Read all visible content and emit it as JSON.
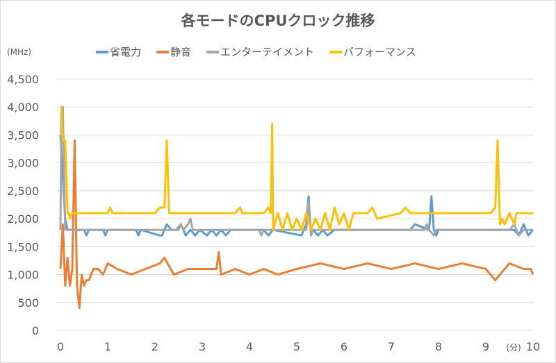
{
  "chart_data": {
    "type": "line",
    "title": "各モードのCPUクロック推移",
    "ylabel": "(MHz)",
    "xlabel": "(分)",
    "ylim": [
      0,
      4500
    ],
    "xlim": [
      0,
      10
    ],
    "yticks": [
      "0",
      "500",
      "1,000",
      "1,500",
      "2,000",
      "2,500",
      "3,000",
      "3,500",
      "4,000",
      "4,500"
    ],
    "xticks": [
      "0",
      "1",
      "2",
      "3",
      "4",
      "5",
      "6",
      "7",
      "8",
      "9",
      "10"
    ],
    "grid": true,
    "legend_position": "top",
    "series": [
      {
        "name": "省電力",
        "color": "#5B9BD5",
        "x": [
          0,
          0.1,
          0.15,
          0.5,
          0.55,
          0.6,
          0.9,
          0.95,
          1,
          1.6,
          1.65,
          1.7,
          2.1,
          2.15,
          2.25,
          2.35,
          2.45,
          2.55,
          2.65,
          2.75,
          2.85,
          2.95,
          3.1,
          3.2,
          3.3,
          3.4,
          3.5,
          3.6,
          4.3,
          4.4,
          4.5,
          5.1,
          5.2,
          5.25,
          5.3,
          5.35,
          5.45,
          5.55,
          5.65,
          5.8,
          6.7,
          7.4,
          7.5,
          7.8,
          7.85,
          7.9,
          7.95,
          8.0,
          8.6,
          9.2,
          9.6,
          9.7,
          9.8,
          9.9,
          10
        ],
        "y": [
          3500,
          2000,
          1800,
          1800,
          1700,
          1800,
          1800,
          1700,
          1800,
          1800,
          1700,
          1800,
          1700,
          1700,
          1900,
          1800,
          1800,
          1900,
          1700,
          1800,
          1700,
          1800,
          1700,
          1800,
          1700,
          1800,
          1700,
          1800,
          1800,
          1700,
          1800,
          1700,
          1900,
          2400,
          1700,
          1800,
          1700,
          1800,
          1700,
          1800,
          1800,
          1800,
          1900,
          1800,
          2400,
          1800,
          1700,
          1800,
          1800,
          1800,
          1800,
          1700,
          1900,
          1700,
          1800
        ]
      },
      {
        "name": "静音",
        "color": "#ED7D31",
        "x": [
          0,
          0.05,
          0.1,
          0.15,
          0.2,
          0.25,
          0.3,
          0.35,
          0.4,
          0.45,
          0.5,
          0.55,
          0.6,
          0.7,
          0.8,
          0.9,
          1,
          1.2,
          1.5,
          1.8,
          2.1,
          2.2,
          2.4,
          2.7,
          3,
          3.3,
          3.35,
          3.4,
          3.7,
          4,
          4.3,
          4.6,
          5,
          5.5,
          6,
          6.5,
          7,
          7.5,
          8,
          8.5,
          9,
          9.2,
          9.5,
          9.8,
          9.95,
          10
        ],
        "y": [
          1100,
          1900,
          800,
          1300,
          800,
          1100,
          3400,
          800,
          400,
          1000,
          800,
          900,
          900,
          1100,
          1100,
          1000,
          1200,
          1100,
          1000,
          1100,
          1200,
          1300,
          1000,
          1100,
          1100,
          1100,
          1400,
          1000,
          1100,
          1000,
          1100,
          1000,
          1100,
          1200,
          1100,
          1200,
          1100,
          1200,
          1100,
          1200,
          1100,
          900,
          1200,
          1100,
          1100,
          1000
        ]
      },
      {
        "name": "エンターテイメント",
        "color": "#A5A5A5",
        "x": [
          0,
          0.02,
          0.05,
          0.1,
          0.15,
          2.5,
          2.55,
          2.6,
          2.7,
          2.75,
          2.8,
          4.2,
          4.25,
          4.3,
          5.2,
          5.25,
          5.3,
          5.35,
          5.4,
          7.7,
          7.75,
          7.8,
          7.9,
          7.95,
          8.0,
          9.5,
          9.6,
          9.7,
          9.8,
          10
        ],
        "y": [
          1800,
          4000,
          4000,
          1800,
          1800,
          1800,
          1900,
          1800,
          1900,
          2000,
          1800,
          1800,
          1700,
          1800,
          1800,
          2300,
          1700,
          1800,
          1800,
          1800,
          1900,
          1800,
          1700,
          1800,
          1800,
          1800,
          1900,
          1700,
          1800,
          1800
        ]
      },
      {
        "name": "パフォーマンス",
        "color": "#FFC000",
        "x": [
          0,
          0.02,
          0.05,
          0.08,
          0.1,
          0.15,
          0.18,
          0.2,
          0.25,
          0.3,
          1,
          1.05,
          1.1,
          2,
          2.1,
          2.2,
          2.25,
          2.3,
          2.35,
          3.7,
          3.8,
          3.85,
          3.9,
          4.3,
          4.4,
          4.45,
          4.48,
          4.5,
          4.6,
          4.7,
          4.8,
          4.9,
          5,
          5.1,
          5.2,
          5.3,
          5.4,
          5.5,
          5.6,
          5.7,
          5.8,
          5.9,
          6,
          6.1,
          6.2,
          6.5,
          6.6,
          6.7,
          7.2,
          7.3,
          7.4,
          8.0,
          9.1,
          9.2,
          9.25,
          9.3,
          9.35,
          9.4,
          9.5,
          9.6,
          9.65,
          9.7,
          10
        ],
        "y": [
          4000,
          4000,
          3400,
          3400,
          3400,
          2100,
          2100,
          2000,
          2100,
          2100,
          2100,
          2200,
          2100,
          2100,
          2200,
          2200,
          3400,
          2100,
          2100,
          2100,
          2200,
          2100,
          2100,
          2100,
          2200,
          2100,
          3700,
          1800,
          2100,
          1800,
          2100,
          1800,
          2000,
          1800,
          2100,
          1800,
          2000,
          1800,
          2100,
          1800,
          2200,
          1900,
          2100,
          1800,
          2100,
          2100,
          2200,
          2000,
          2100,
          2200,
          2100,
          2100,
          2100,
          2200,
          3400,
          1900,
          2000,
          1900,
          2100,
          1900,
          2100,
          2100,
          2100
        ]
      }
    ]
  }
}
